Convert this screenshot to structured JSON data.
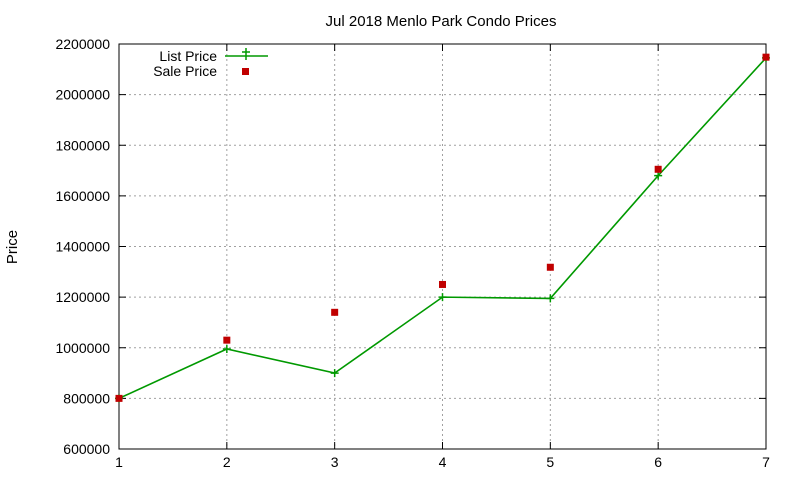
{
  "chart_data": {
    "type": "line",
    "title": "Jul 2018 Menlo Park Condo Prices",
    "xlabel": "",
    "ylabel": "Price",
    "x": [
      1,
      2,
      3,
      4,
      5,
      6,
      7
    ],
    "xlim": [
      1,
      7
    ],
    "ylim": [
      600000,
      2200000
    ],
    "x_ticks": [
      "1",
      "2",
      "3",
      "4",
      "5",
      "6",
      "7"
    ],
    "y_ticks": [
      "600000",
      "800000",
      "1000000",
      "1200000",
      "1400000",
      "1600000",
      "1800000",
      "2000000",
      "2200000"
    ],
    "grid": true,
    "legend_position": "top-left",
    "series": [
      {
        "name": "List Price",
        "style": "line-with-plus-markers",
        "color": "#009900",
        "values": [
          800000,
          995000,
          900000,
          1200000,
          1195000,
          1680000,
          2145000
        ]
      },
      {
        "name": "Sale Price",
        "style": "square-markers",
        "color": "#c00000",
        "values": [
          800000,
          1030000,
          1140000,
          1250000,
          1318000,
          1705000,
          2148000
        ]
      }
    ]
  }
}
